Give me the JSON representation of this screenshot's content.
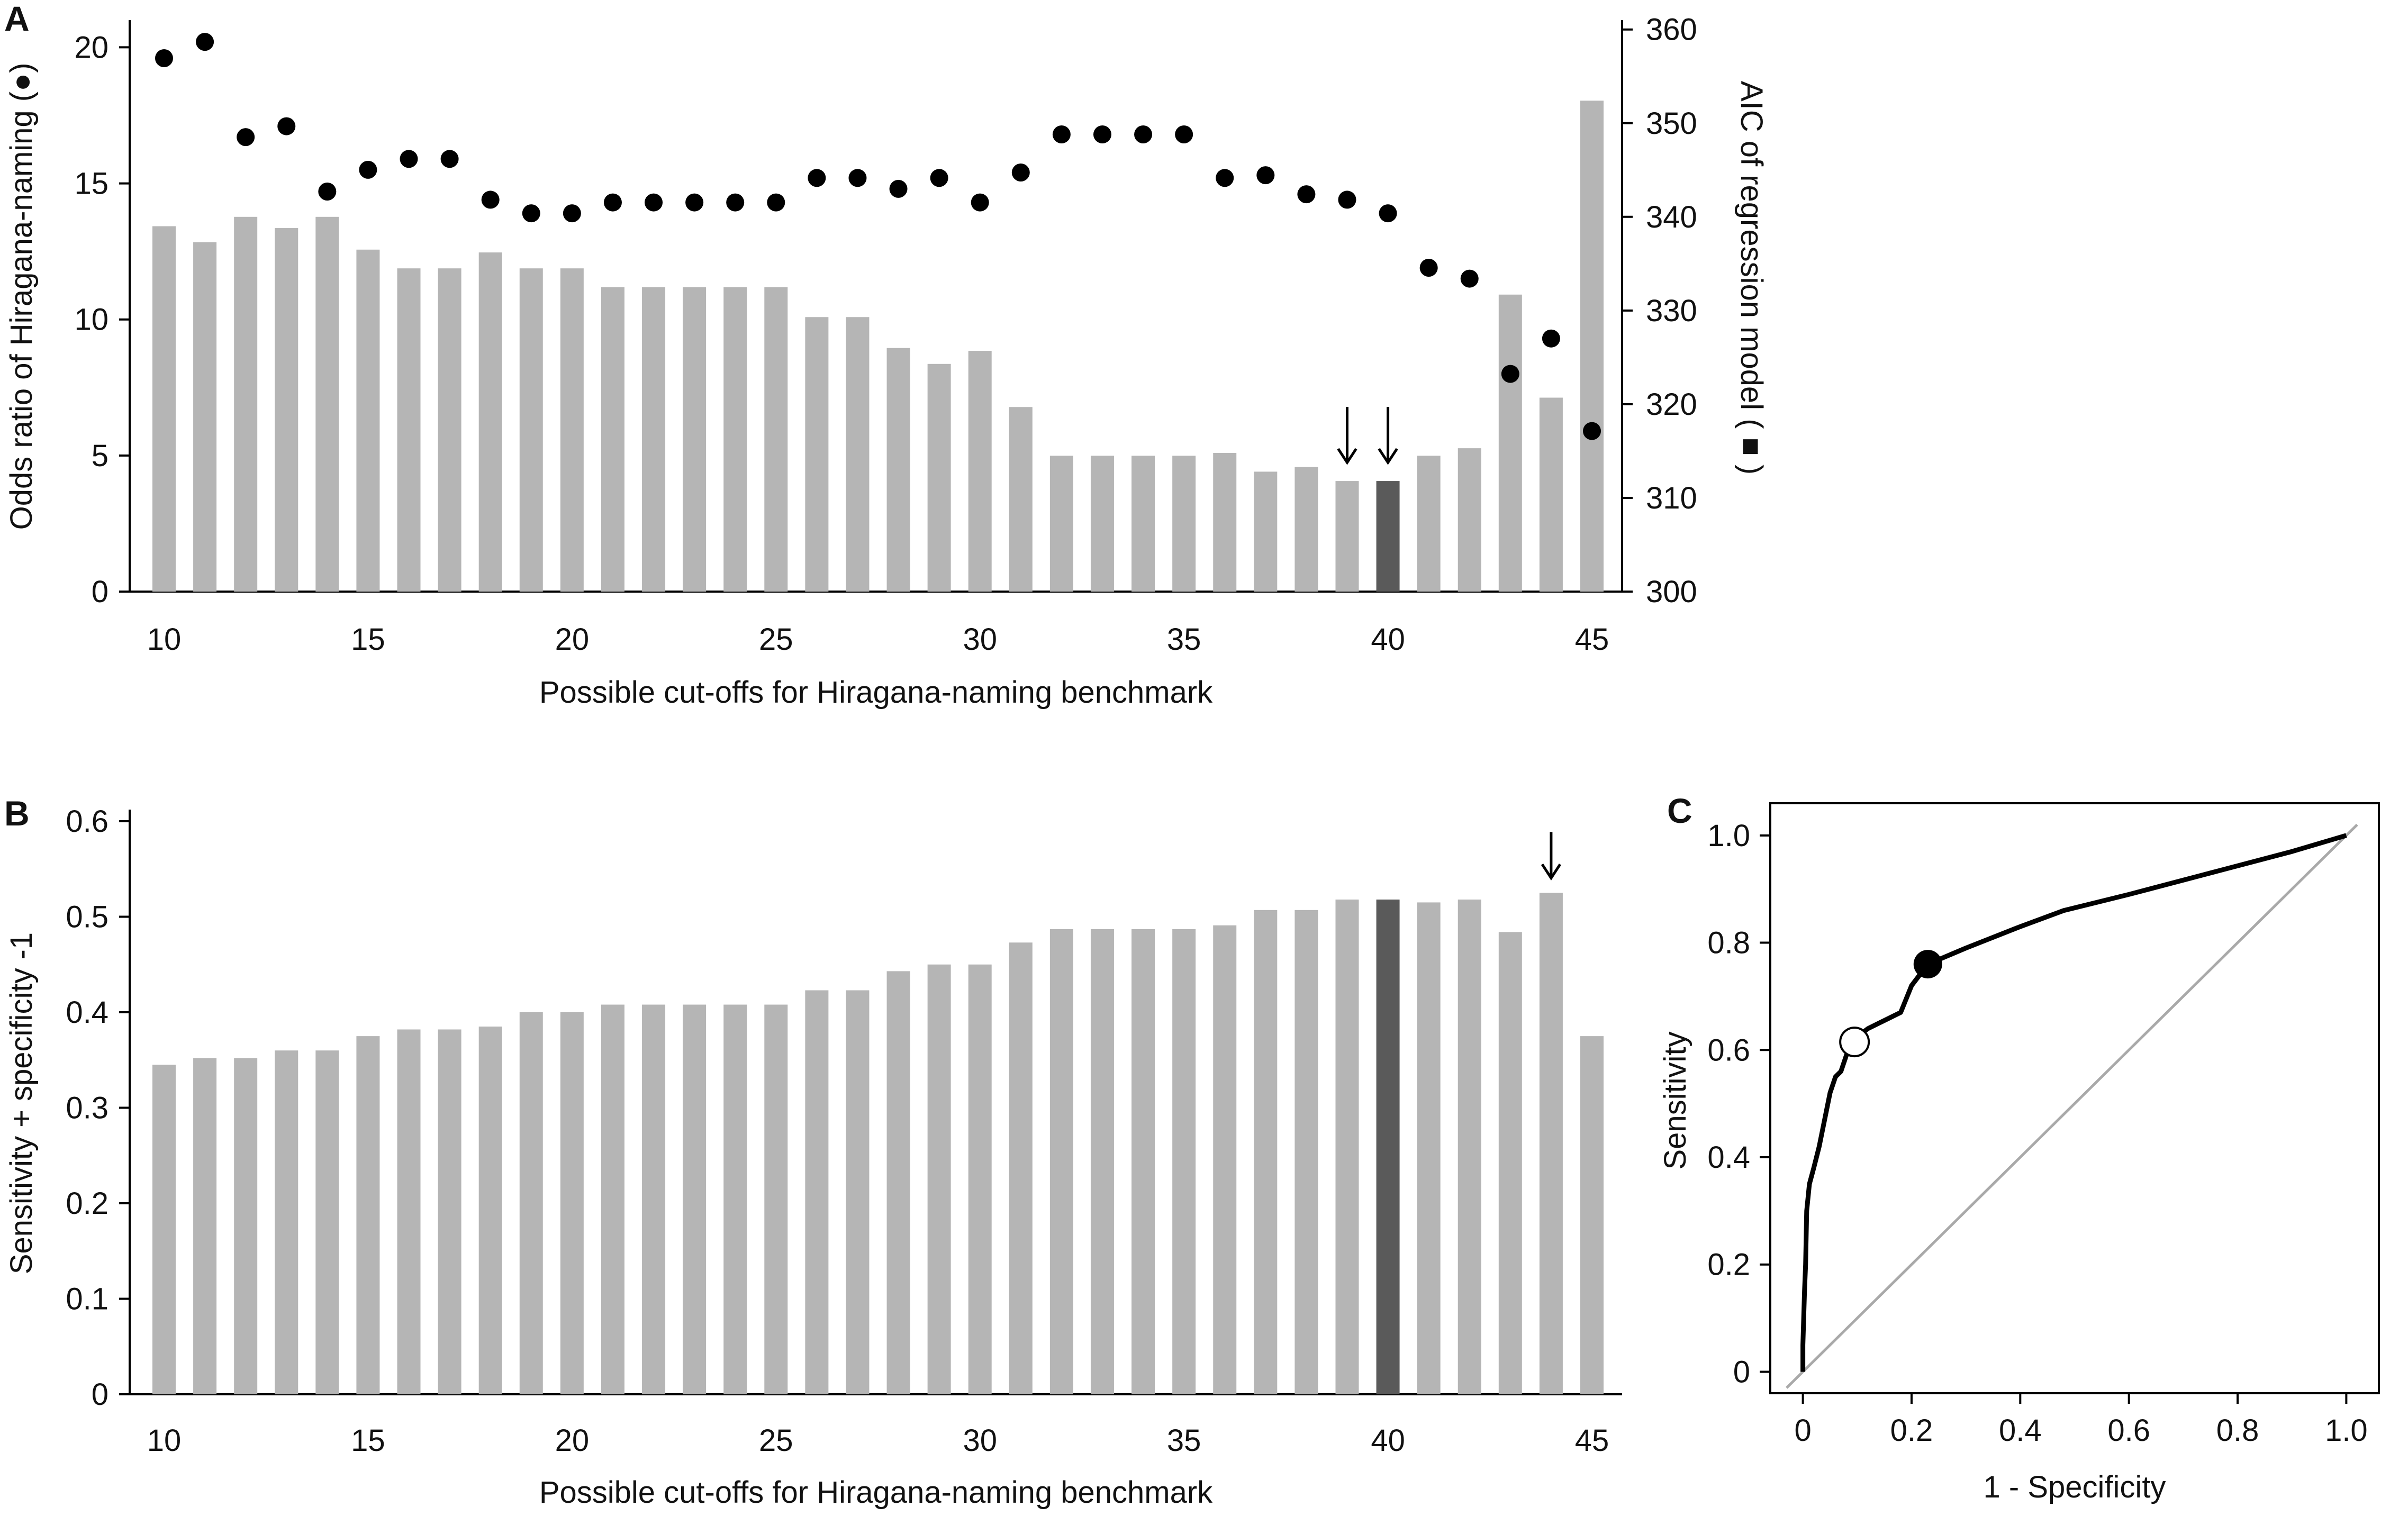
{
  "colors": {
    "bar": "#b5b5b5",
    "bar_highlight": "#5a5a5a",
    "point": "#000000",
    "roc_line": "#000000",
    "diagonal": "#a9a9a9"
  },
  "chart_data": [
    {
      "panel": "A",
      "type": "bar",
      "xlabel": "Possible cut-offs for Hiragana-naming benchmark",
      "ylabel_left": "Odds ratio of Hiragana-naming (●)",
      "ylabel_right": "AIC of regression model ( ■ )",
      "x": [
        10,
        11,
        12,
        13,
        14,
        15,
        16,
        17,
        18,
        19,
        20,
        21,
        22,
        23,
        24,
        25,
        26,
        27,
        28,
        29,
        30,
        31,
        32,
        33,
        34,
        35,
        36,
        37,
        38,
        39,
        40,
        41,
        42,
        43,
        44,
        45
      ],
      "x_ticks": [
        "10",
        "15",
        "20",
        "25",
        "30",
        "35",
        "40",
        "45"
      ],
      "y_left_ticks": [
        "0",
        "5",
        "10",
        "15",
        "20"
      ],
      "y_right_ticks": [
        "300",
        "310",
        "320",
        "330",
        "340",
        "350",
        "360"
      ],
      "ylim_left": [
        0,
        21
      ],
      "ylim_right": [
        300,
        361
      ],
      "series": [
        {
          "name": "AIC of regression model",
          "kind": "bar",
          "axis": "right",
          "values": [
            339,
            337.3,
            340,
            338.8,
            340,
            336.5,
            334.5,
            334.5,
            336.2,
            334.5,
            334.5,
            332.5,
            332.5,
            332.5,
            332.5,
            332.5,
            329.3,
            329.3,
            326,
            324.3,
            325.7,
            319.7,
            314.5,
            314.5,
            314.5,
            314.5,
            314.8,
            312.8,
            313.3,
            311.8,
            311.8,
            314.5,
            315.3,
            331.7,
            320.7,
            352.4
          ]
        },
        {
          "name": "Odds ratio of Hiragana-naming",
          "kind": "scatter",
          "axis": "left",
          "values": [
            19.6,
            20.2,
            16.7,
            17.1,
            14.7,
            15.5,
            15.9,
            15.9,
            14.4,
            13.9,
            13.9,
            14.3,
            14.3,
            14.3,
            14.3,
            14.3,
            15.2,
            15.2,
            14.8,
            15.2,
            14.3,
            15.4,
            16.8,
            16.8,
            16.8,
            16.8,
            15.2,
            15.3,
            14.6,
            14.4,
            13.9,
            11.9,
            11.5,
            8.0,
            9.3,
            5.9
          ]
        }
      ],
      "highlight_x": 40,
      "arrows_at": [
        39,
        40
      ]
    },
    {
      "panel": "B",
      "type": "bar",
      "xlabel": "Possible cut-offs for Hiragana-naming benchmark",
      "ylabel": "Sensitivity + specificity -1",
      "x": [
        10,
        11,
        12,
        13,
        14,
        15,
        16,
        17,
        18,
        19,
        20,
        21,
        22,
        23,
        24,
        25,
        26,
        27,
        28,
        29,
        30,
        31,
        32,
        33,
        34,
        35,
        36,
        37,
        38,
        39,
        40,
        41,
        42,
        43,
        44,
        45
      ],
      "x_ticks": [
        "10",
        "15",
        "20",
        "25",
        "30",
        "35",
        "40",
        "45"
      ],
      "y_ticks": [
        "0",
        "0.1",
        "0.2",
        "0.3",
        "0.4",
        "0.5",
        "0.6"
      ],
      "ylim": [
        0,
        0.6
      ],
      "values": [
        0.345,
        0.352,
        0.352,
        0.36,
        0.36,
        0.375,
        0.382,
        0.382,
        0.385,
        0.4,
        0.4,
        0.408,
        0.408,
        0.408,
        0.408,
        0.408,
        0.423,
        0.423,
        0.443,
        0.45,
        0.45,
        0.473,
        0.487,
        0.487,
        0.487,
        0.487,
        0.491,
        0.507,
        0.507,
        0.518,
        0.518,
        0.515,
        0.518,
        0.484,
        0.525,
        0.375
      ],
      "highlight_x": 40,
      "arrows_at": [
        44
      ]
    },
    {
      "panel": "C",
      "type": "line",
      "xlabel": "1 - Specificity",
      "ylabel": "Sensitivity",
      "x_ticks": [
        "0",
        "0.2",
        "0.4",
        "0.6",
        "0.8",
        "1.0"
      ],
      "y_ticks": [
        "0",
        "0.2",
        "0.4",
        "0.6",
        "0.8",
        "1.0"
      ],
      "xlim": [
        -0.06,
        1.06
      ],
      "ylim": [
        -0.04,
        1.06
      ],
      "roc": [
        [
          0,
          0
        ],
        [
          0,
          0.05
        ],
        [
          0.003,
          0.15
        ],
        [
          0.005,
          0.2
        ],
        [
          0.007,
          0.3
        ],
        [
          0.012,
          0.35
        ],
        [
          0.02,
          0.38
        ],
        [
          0.03,
          0.42
        ],
        [
          0.04,
          0.47
        ],
        [
          0.05,
          0.52
        ],
        [
          0.06,
          0.55
        ],
        [
          0.07,
          0.56
        ],
        [
          0.08,
          0.59
        ],
        [
          0.09,
          0.61
        ],
        [
          0.1,
          0.625
        ],
        [
          0.12,
          0.64
        ],
        [
          0.14,
          0.65
        ],
        [
          0.18,
          0.67
        ],
        [
          0.2,
          0.72
        ],
        [
          0.23,
          0.76
        ],
        [
          0.3,
          0.79
        ],
        [
          0.4,
          0.83
        ],
        [
          0.48,
          0.86
        ],
        [
          0.6,
          0.89
        ],
        [
          0.75,
          0.93
        ],
        [
          0.9,
          0.97
        ],
        [
          1.0,
          1.0
        ]
      ],
      "diagonal": [
        [
          -0.03,
          -0.03
        ],
        [
          1.02,
          1.02
        ]
      ],
      "open_point": [
        0.095,
        0.615
      ],
      "filled_point": [
        0.23,
        0.76
      ]
    }
  ]
}
